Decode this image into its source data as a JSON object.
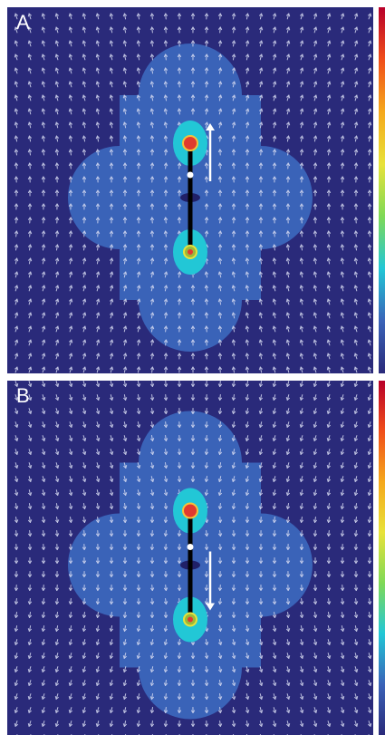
{
  "panels": [
    {
      "label": "A",
      "flow_direction": "up"
    },
    {
      "label": "B",
      "flow_direction": "down"
    }
  ],
  "colors": {
    "background": "#2a2a7a",
    "outer_lobes": "#3a63b8",
    "inner_region": "#22c7d6",
    "sphere_core": "#e03a2e",
    "arrow": "#ffffff",
    "rod": "#000000"
  },
  "colorbar": [
    "#b8002a",
    "#f04e1a",
    "#f5a81c",
    "#e8e23a",
    "#7ed957",
    "#22c7d6",
    "#3a63b8",
    "#2a2a7a"
  ]
}
